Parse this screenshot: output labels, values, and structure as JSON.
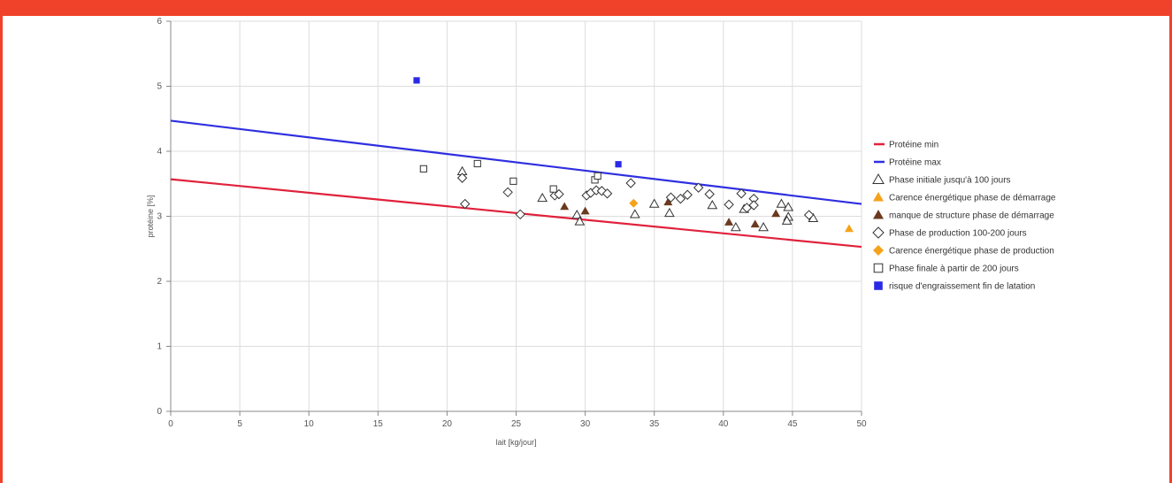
{
  "colors": {
    "frame": "#f0412a",
    "prot_min": "#e0213b",
    "prot_max": "#2f2fe0",
    "orange": "#f5a21b",
    "brown": "#6b3a1e",
    "blue_marker": "#2a2ae6",
    "grid": "#dddddd"
  },
  "chart_data": {
    "type": "scatter",
    "title": "",
    "xlabel": "lait [kg/jour]",
    "ylabel": "protéine [%]",
    "xlim": [
      0,
      50
    ],
    "ylim": [
      0,
      6
    ],
    "x_ticks": [
      "0",
      "5",
      "10",
      "15",
      "20",
      "25",
      "30",
      "35",
      "40",
      "45",
      "50"
    ],
    "y_ticks": [
      "0",
      "1",
      "2",
      "3",
      "4",
      "5",
      "6"
    ],
    "grid": true,
    "legend_position": "right",
    "series": [
      {
        "name": "Protéine min",
        "kind": "line",
        "color": "#e0213b",
        "points": [
          [
            0,
            3.57
          ],
          [
            50,
            2.53
          ]
        ]
      },
      {
        "name": "Protéine max",
        "kind": "line",
        "color": "#2f2fe0",
        "points": [
          [
            0,
            4.47
          ],
          [
            50,
            3.19
          ]
        ]
      },
      {
        "name": "Phase initiale jusqu'à 100 jours",
        "kind": "scatter",
        "marker": "triangle-open",
        "color": "#333333",
        "points": [
          [
            21.1,
            3.69
          ],
          [
            26.9,
            3.28
          ],
          [
            29.4,
            3.02
          ],
          [
            29.6,
            2.92
          ],
          [
            33.6,
            3.03
          ],
          [
            35.0,
            3.19
          ],
          [
            36.1,
            3.05
          ],
          [
            39.2,
            3.17
          ],
          [
            41.5,
            3.11
          ],
          [
            42.9,
            2.83
          ],
          [
            44.2,
            3.19
          ],
          [
            44.7,
            3.14
          ],
          [
            44.7,
            2.99
          ],
          [
            44.6,
            2.93
          ],
          [
            46.5,
            2.97
          ],
          [
            40.9,
            2.83
          ]
        ]
      },
      {
        "name": "Carence énergétique phase de démarrage",
        "kind": "scatter",
        "marker": "triangle",
        "color": "#f5a21b",
        "points": [
          [
            49.1,
            2.81
          ]
        ]
      },
      {
        "name": "manque de structure phase de démarrage",
        "kind": "scatter",
        "marker": "triangle",
        "color": "#6b3a1e",
        "points": [
          [
            28.5,
            3.15
          ],
          [
            30.0,
            3.08
          ],
          [
            36.0,
            3.22
          ],
          [
            40.4,
            2.91
          ],
          [
            42.3,
            2.88
          ],
          [
            43.8,
            3.04
          ]
        ]
      },
      {
        "name": "Phase de production 100-200 jours",
        "kind": "scatter",
        "marker": "diamond-open",
        "color": "#333333",
        "points": [
          [
            21.1,
            3.59
          ],
          [
            21.3,
            3.19
          ],
          [
            24.4,
            3.37
          ],
          [
            25.3,
            3.03
          ],
          [
            27.8,
            3.32
          ],
          [
            28.1,
            3.34
          ],
          [
            30.1,
            3.32
          ],
          [
            30.4,
            3.36
          ],
          [
            30.8,
            3.4
          ],
          [
            31.2,
            3.39
          ],
          [
            31.6,
            3.35
          ],
          [
            33.3,
            3.51
          ],
          [
            36.2,
            3.29
          ],
          [
            36.9,
            3.27
          ],
          [
            37.4,
            3.33
          ],
          [
            38.2,
            3.44
          ],
          [
            39.0,
            3.34
          ],
          [
            40.4,
            3.18
          ],
          [
            41.3,
            3.35
          ],
          [
            41.7,
            3.13
          ],
          [
            42.2,
            3.27
          ],
          [
            42.2,
            3.17
          ],
          [
            46.2,
            3.02
          ]
        ]
      },
      {
        "name": "Carence énergétique phase de production",
        "kind": "scatter",
        "marker": "diamond",
        "color": "#f5a21b",
        "points": [
          [
            33.5,
            3.2
          ]
        ]
      },
      {
        "name": "Phase finale à partir de 200 jours",
        "kind": "scatter",
        "marker": "square-open",
        "color": "#333333",
        "points": [
          [
            18.3,
            3.73
          ],
          [
            22.2,
            3.81
          ],
          [
            24.8,
            3.54
          ],
          [
            27.7,
            3.42
          ],
          [
            30.7,
            3.56
          ],
          [
            30.9,
            3.62
          ]
        ]
      },
      {
        "name": "risque d'engraissement fin de latation",
        "kind": "scatter",
        "marker": "square",
        "color": "#2a2ae6",
        "points": [
          [
            17.8,
            5.09
          ],
          [
            32.4,
            3.8
          ]
        ]
      }
    ]
  }
}
